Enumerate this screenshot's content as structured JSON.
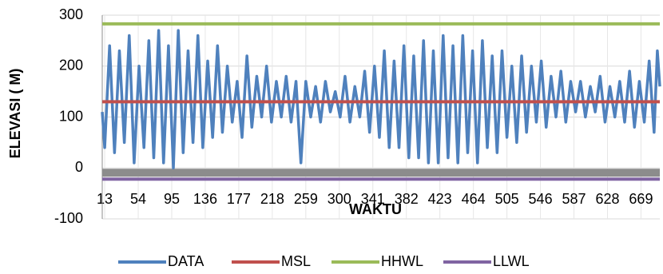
{
  "chart_data": {
    "type": "line",
    "x_label": "WAKTU",
    "y_label": "ELEVASI ( M)",
    "x": [
      10,
      13,
      19,
      25,
      31,
      37,
      43,
      49,
      55,
      61,
      67,
      73,
      79,
      85,
      91,
      97,
      103,
      109,
      115,
      121,
      127,
      133,
      139,
      145,
      151,
      157,
      163,
      169,
      175,
      181,
      187,
      193,
      199,
      205,
      211,
      217,
      223,
      229,
      235,
      241,
      247,
      253,
      259,
      265,
      271,
      277,
      283,
      289,
      295,
      301,
      307,
      313,
      319,
      325,
      331,
      337,
      343,
      349,
      355,
      361,
      367,
      373,
      379,
      385,
      391,
      397,
      403,
      409,
      415,
      421,
      427,
      433,
      439,
      445,
      451,
      457,
      463,
      469,
      475,
      481,
      487,
      493,
      499,
      505,
      511,
      517,
      523,
      529,
      535,
      541,
      547,
      553,
      559,
      565,
      571,
      577,
      583,
      589,
      595,
      601,
      607,
      613,
      619,
      625,
      631,
      637,
      643,
      649,
      655,
      661,
      667,
      673,
      679,
      685,
      689,
      692
    ],
    "series": [
      {
        "name": "DATA",
        "color": "#4f81bd",
        "values": [
          110,
          40,
          240,
          30,
          230,
          50,
          260,
          10,
          200,
          40,
          250,
          20,
          270,
          10,
          240,
          0,
          270,
          30,
          230,
          50,
          260,
          40,
          210,
          60,
          240,
          70,
          200,
          90,
          170,
          60,
          220,
          80,
          180,
          100,
          200,
          90,
          170,
          100,
          180,
          90,
          170,
          10,
          170,
          100,
          160,
          90,
          170,
          110,
          150,
          100,
          180,
          90,
          160,
          100,
          190,
          70,
          200,
          60,
          230,
          40,
          210,
          40,
          240,
          20,
          220,
          20,
          250,
          10,
          230,
          10,
          260,
          20,
          240,
          10,
          260,
          30,
          230,
          10,
          250,
          40,
          220,
          30,
          230,
          60,
          200,
          50,
          220,
          70,
          200,
          90,
          210,
          80,
          180,
          100,
          190,
          90,
          170,
          110,
          170,
          100,
          160,
          110,
          180,
          90,
          160,
          100,
          170,
          90,
          190,
          80,
          170,
          90,
          210,
          70,
          230,
          160
        ]
      }
    ],
    "reference_lines": [
      {
        "name": "MSL",
        "color": "#c0504d",
        "value": 130
      },
      {
        "name": "HHWL",
        "color": "#9bbb59",
        "value": 283
      },
      {
        "name": "LLWL",
        "color": "#8064a2",
        "value": -22
      }
    ],
    "xlim": [
      10,
      692
    ],
    "xticks": [
      13,
      54,
      95,
      136,
      177,
      218,
      259,
      300,
      341,
      382,
      423,
      464,
      505,
      546,
      587,
      628,
      669
    ],
    "ylim": [
      -100,
      300
    ],
    "yticks": [
      -100,
      0,
      100,
      200,
      300
    ],
    "grid": true,
    "legend": "bottom"
  }
}
